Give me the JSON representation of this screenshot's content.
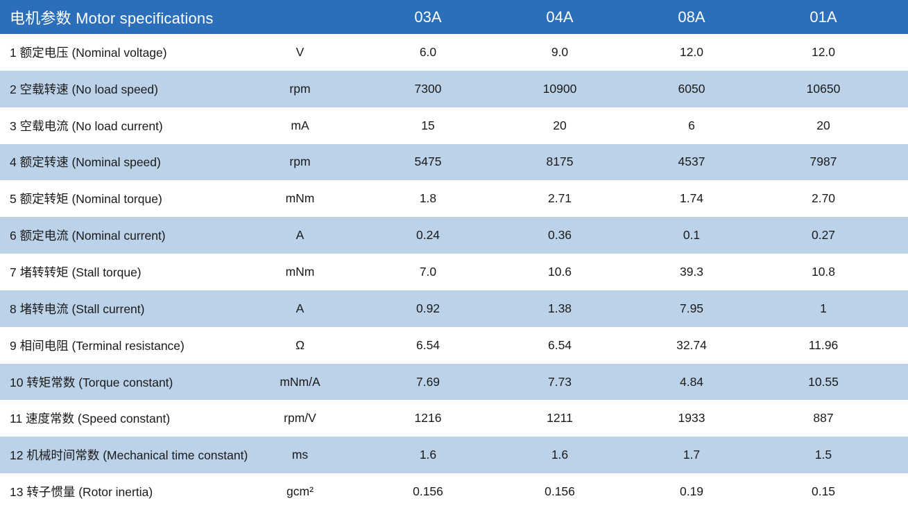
{
  "colors": {
    "header_bg": "#2B6FBA",
    "row_alt_bg": "#BCD2E9",
    "row_bg": "#FFFFFF",
    "header_text": "#FFFFFF",
    "body_text": "#1A1A1A"
  },
  "table": {
    "title": "电机参数 Motor specifications",
    "columns": [
      "03A",
      "04A",
      "08A",
      "01A"
    ],
    "rows": [
      {
        "label": "1 额定电压 (Nominal voltage)",
        "unit": "V",
        "values": [
          "6.0",
          "9.0",
          "12.0",
          "12.0"
        ]
      },
      {
        "label": "2 空载转速 (No load speed)",
        "unit": "rpm",
        "values": [
          "7300",
          "10900",
          "6050",
          "10650"
        ]
      },
      {
        "label": "3 空载电流 (No load current)",
        "unit": "mA",
        "values": [
          "15",
          "20",
          "6",
          "20"
        ]
      },
      {
        "label": "4 额定转速 (Nominal speed)",
        "unit": "rpm",
        "values": [
          "5475",
          "8175",
          "4537",
          "7987"
        ]
      },
      {
        "label": "5 额定转矩 (Nominal torque)",
        "unit": "mNm",
        "values": [
          "1.8",
          "2.71",
          "1.74",
          "2.70"
        ]
      },
      {
        "label": "6 额定电流 (Nominal current)",
        "unit": "A",
        "values": [
          "0.24",
          "0.36",
          "0.1",
          "0.27"
        ]
      },
      {
        "label": "7 堵转转矩 (Stall torque)",
        "unit": "mNm",
        "values": [
          "7.0",
          "10.6",
          "39.3",
          "10.8"
        ]
      },
      {
        "label": "8 堵转电流 (Stall current)",
        "unit": "A",
        "values": [
          "0.92",
          "1.38",
          "7.95",
          "1"
        ]
      },
      {
        "label": "9 相间电阻 (Terminal resistance)",
        "unit": "Ω",
        "values": [
          "6.54",
          "6.54",
          "32.74",
          "11.96"
        ]
      },
      {
        "label": "10 转矩常数 (Torque constant)",
        "unit": "mNm/A",
        "values": [
          "7.69",
          "7.73",
          "4.84",
          "10.55"
        ]
      },
      {
        "label": "11 速度常数 (Speed constant)",
        "unit": "rpm/V",
        "values": [
          "1216",
          "1211",
          "1933",
          "887"
        ]
      },
      {
        "label": "12 机械时间常数 (Mechanical time constant)",
        "unit": "ms",
        "values": [
          "1.6",
          "1.6",
          "1.7",
          "1.5"
        ]
      },
      {
        "label": "13 转子惯量 (Rotor inertia)",
        "unit": "gcm²",
        "values": [
          "0.156",
          "0.156",
          "0.19",
          "0.15"
        ]
      }
    ]
  }
}
